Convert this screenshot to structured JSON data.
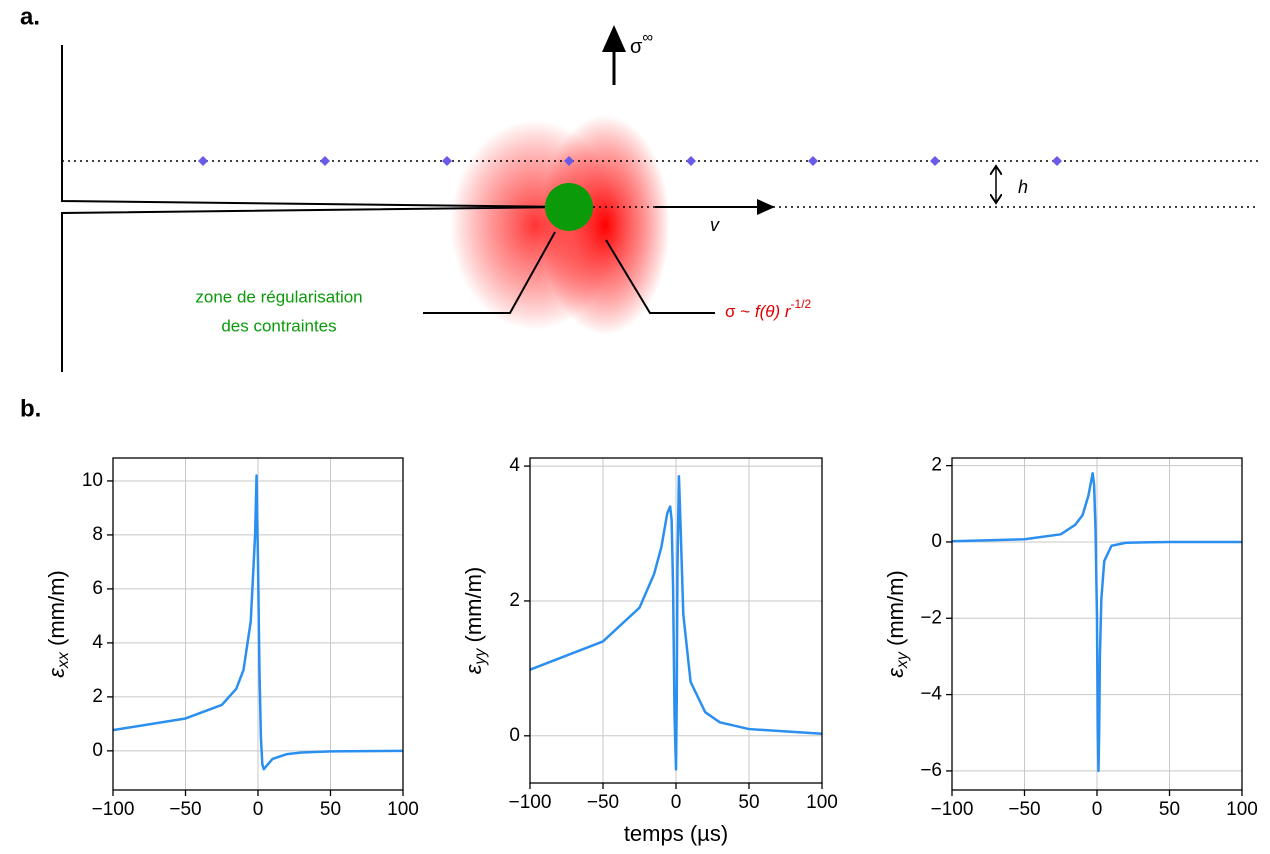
{
  "diagram": {
    "panel_label": "a.",
    "sigma_far": {
      "symbol": "σ",
      "superscript": "∞"
    },
    "h_label": "h",
    "v_label": "v",
    "zone_label": [
      "zone de régularisation",
      "des contraintes"
    ],
    "stress_law": {
      "lhs": "σ ~ ",
      "f": "f",
      "theta": "(θ)",
      "r": " r",
      "exponent": "-1/2"
    }
  },
  "panel_b_label": "b.",
  "chart_data": [
    {
      "type": "line",
      "color": "#2b8ff0",
      "grid": true,
      "y_label": {
        "symbol": "ε",
        "subscript": "xx",
        "unit": " (mm/m)"
      },
      "x": [
        -100,
        -50,
        -25,
        -15,
        -10,
        -5,
        -2,
        -1,
        0,
        1,
        2,
        3,
        4,
        6,
        10,
        20,
        30,
        50,
        100
      ],
      "values": [
        0.77,
        1.2,
        1.7,
        2.3,
        3.0,
        4.8,
        8,
        10.2,
        7,
        3,
        0.5,
        -0.5,
        -0.68,
        -0.55,
        -0.3,
        -0.12,
        -0.06,
        -0.02,
        0
      ],
      "xlim": [
        -100,
        100
      ],
      "xticks": [
        {
          "value": -100,
          "label": "−100"
        },
        {
          "value": -50,
          "label": "−50"
        },
        0,
        50,
        100
      ],
      "ylim": [
        -1.45,
        10.85
      ],
      "yticks": [
        0,
        2,
        4,
        6,
        8,
        10
      ]
    },
    {
      "type": "line",
      "color": "#2b8ff0",
      "grid": true,
      "y_label": {
        "symbol": "ε",
        "subscript": "yy",
        "unit": " (mm/m)"
      },
      "x_label": "temps (µs)",
      "x": [
        -100,
        -50,
        -25,
        -15,
        -10,
        -6,
        -4,
        -3,
        -2,
        -1,
        0,
        0.5,
        1,
        2,
        3,
        5,
        10,
        20,
        30,
        50,
        100
      ],
      "values": [
        0.98,
        1.4,
        1.9,
        2.4,
        2.8,
        3.3,
        3.4,
        3.2,
        2.2,
        0.3,
        -0.5,
        0.5,
        2.5,
        3.85,
        3.2,
        1.8,
        0.8,
        0.35,
        0.2,
        0.1,
        0.03
      ],
      "xlim": [
        -100,
        100
      ],
      "xticks": [
        {
          "value": -100,
          "label": "−100"
        },
        {
          "value": -50,
          "label": "−50"
        },
        0,
        50,
        100
      ],
      "ylim": [
        -0.7,
        4.12
      ],
      "yticks": [
        0,
        2,
        4
      ]
    },
    {
      "type": "line",
      "color": "#2b8ff0",
      "grid": true,
      "y_label": {
        "symbol": "ε",
        "subscript": "xy",
        "unit": " (mm/m)"
      },
      "x": [
        -100,
        -50,
        -25,
        -15,
        -10,
        -6,
        -4,
        -3,
        -2,
        -1,
        0,
        0.5,
        1,
        1.5,
        2,
        3,
        5,
        10,
        20,
        50,
        100
      ],
      "values": [
        0.02,
        0.07,
        0.2,
        0.45,
        0.7,
        1.2,
        1.6,
        1.8,
        1.5,
        0.3,
        -2,
        -5,
        -6,
        -5,
        -3,
        -1.5,
        -0.5,
        -0.1,
        -0.02,
        0,
        0
      ],
      "xlim": [
        -100,
        100
      ],
      "xticks": [
        {
          "value": -100,
          "label": "−100"
        },
        {
          "value": -50,
          "label": "−50"
        },
        0,
        50,
        100
      ],
      "ylim": [
        -6.5,
        2.2
      ],
      "yticks": [
        {
          "value": -6,
          "label": "−6"
        },
        {
          "value": -4,
          "label": "−4"
        },
        {
          "value": -2,
          "label": "−2"
        },
        0,
        2
      ]
    }
  ]
}
